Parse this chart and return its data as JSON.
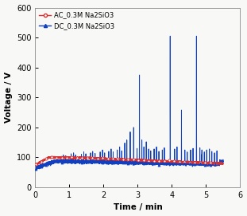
{
  "title": "",
  "xlabel": "Time / min",
  "ylabel": "Voltage / V",
  "xlim": [
    0,
    6
  ],
  "ylim": [
    0,
    600
  ],
  "xticks": [
    0,
    1,
    2,
    3,
    4,
    5,
    6
  ],
  "yticks": [
    0,
    100,
    200,
    300,
    400,
    500,
    600
  ],
  "ac_color": "#d63030",
  "dc_color": "#1040c0",
  "ac_label": "AC_0.3M Na2SiO3",
  "dc_label": "DC_0.3M Na2SiO3",
  "background": "#f8f8f6",
  "figsize": [
    3.11,
    2.71
  ],
  "dpi": 100,
  "dc_spikes": [
    [
      0.82,
      108
    ],
    [
      0.88,
      105
    ],
    [
      1.05,
      112
    ],
    [
      1.12,
      115
    ],
    [
      1.18,
      108
    ],
    [
      1.35,
      110
    ],
    [
      1.42,
      118
    ],
    [
      1.48,
      112
    ],
    [
      1.62,
      115
    ],
    [
      1.68,
      120
    ],
    [
      1.75,
      113
    ],
    [
      1.9,
      118
    ],
    [
      1.97,
      125
    ],
    [
      2.03,
      115
    ],
    [
      2.15,
      120
    ],
    [
      2.22,
      128
    ],
    [
      2.28,
      118
    ],
    [
      2.4,
      125
    ],
    [
      2.47,
      135
    ],
    [
      2.53,
      122
    ],
    [
      2.62,
      148
    ],
    [
      2.68,
      158
    ],
    [
      2.78,
      185
    ],
    [
      2.88,
      200
    ],
    [
      2.98,
      130
    ],
    [
      3.05,
      375
    ],
    [
      3.12,
      158
    ],
    [
      3.18,
      135
    ],
    [
      3.25,
      152
    ],
    [
      3.32,
      128
    ],
    [
      3.38,
      122
    ],
    [
      3.48,
      128
    ],
    [
      3.55,
      135
    ],
    [
      3.62,
      120
    ],
    [
      3.72,
      125
    ],
    [
      3.78,
      132
    ],
    [
      3.95,
      505
    ],
    [
      4.08,
      128
    ],
    [
      4.15,
      135
    ],
    [
      4.28,
      258
    ],
    [
      4.38,
      125
    ],
    [
      4.45,
      118
    ],
    [
      4.55,
      125
    ],
    [
      4.62,
      130
    ],
    [
      4.72,
      505
    ],
    [
      4.82,
      132
    ],
    [
      4.88,
      125
    ],
    [
      4.95,
      118
    ],
    [
      5.02,
      125
    ],
    [
      5.1,
      128
    ],
    [
      5.17,
      120
    ],
    [
      5.25,
      115
    ],
    [
      5.32,
      122
    ]
  ]
}
